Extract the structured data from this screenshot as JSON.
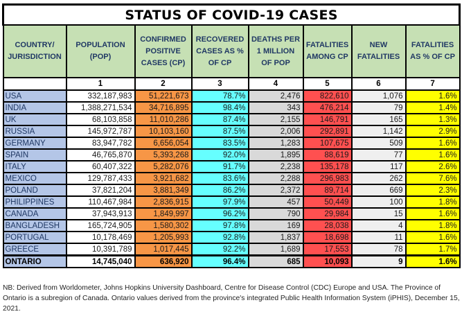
{
  "title": "STATUS OF COVID-19 CASES",
  "columns": [
    "COUNTRY/ JURISDICTION",
    "POPULATION (POP)",
    "CONFIRMED POSITIVE CASES (CP)",
    "RECOVERED CASES AS % OF CP",
    "DEATHS PER 1 MILLION OF POP",
    "FATALITIES AMONG CP",
    "NEW FATALITIES",
    "FATALITIES AS % OF CP"
  ],
  "column_numbers": [
    "",
    "1",
    "2",
    "3",
    "4",
    "5",
    "6",
    "7"
  ],
  "rows": [
    [
      "USA",
      "332,187,983",
      "51,221,673",
      "78.7%",
      "2,476",
      "822,610",
      "1,076",
      "1.6%"
    ],
    [
      "INDIA",
      "1,388,271,534",
      "34,716,895",
      "98.4%",
      "343",
      "476,214",
      "79",
      "1.4%"
    ],
    [
      "UK",
      "68,103,858",
      "11,010,286",
      "87.4%",
      "2,155",
      "146,791",
      "165",
      "1.3%"
    ],
    [
      "RUSSIA",
      "145,972,787",
      "10,103,160",
      "87.5%",
      "2,006",
      "292,891",
      "1,142",
      "2.9%"
    ],
    [
      "GERMANY",
      "83,947,782",
      "6,656,054",
      "83.5%",
      "1,283",
      "107,675",
      "509",
      "1.6%"
    ],
    [
      "SPAIN",
      "46,765,870",
      "5,393,268",
      "92.0%",
      "1,895",
      "88,619",
      "77",
      "1.6%"
    ],
    [
      "ITALY",
      "60,407,322",
      "5,282,076",
      "91.7%",
      "2,238",
      "135,178",
      "117",
      "2.6%"
    ],
    [
      "MEXICO",
      "129,787,433",
      "3,921,682",
      "83.6%",
      "2,288",
      "296,983",
      "262",
      "7.6%"
    ],
    [
      "POLAND",
      "37,821,204",
      "3,881,349",
      "86.2%",
      "2,372",
      "89,714",
      "669",
      "2.3%"
    ],
    [
      "PHILIPPINES",
      "110,467,984",
      "2,836,915",
      "97.9%",
      "457",
      "50,449",
      "100",
      "1.8%"
    ],
    [
      "CANADA",
      "37,943,913",
      "1,849,997",
      "96.2%",
      "790",
      "29,984",
      "15",
      "1.6%"
    ],
    [
      "BANGLADESH",
      "165,724,905",
      "1,580,302",
      "97.8%",
      "169",
      "28,038",
      "4",
      "1.8%"
    ],
    [
      "PORTUGAL",
      "10,178,469",
      "1,205,993",
      "92.8%",
      "1,837",
      "18,698",
      "11",
      "1.6%"
    ],
    [
      "GREECE",
      "10,391,789",
      "1,017,445",
      "92.2%",
      "1,689",
      "17,553",
      "78",
      "1.7%"
    ]
  ],
  "total_row": [
    "ONTARIO",
    "14,745,040",
    "636,920",
    "96.4%",
    "685",
    "10,093",
    "9",
    "1.6%"
  ],
  "note": "NB: Derived from Worldometer, Johns Hopkins University Dashboard, Centre for Disease Control (CDC) Europe and USA. The Province of Ontario is a subregion of Canada. Ontario values derived from the province's integrated Public Health Information System (iPHIS), December 15, 2021.",
  "colors": {
    "header": "#c6e0b4",
    "country": "#b4c6e7",
    "cases": "#f79646",
    "recovered": "#66ffff",
    "deaths_per_million": "#d9d9d9",
    "fatalities": "#ff5050",
    "new_fatalities": "#efefef",
    "fatality_pct": "#ffff00"
  }
}
